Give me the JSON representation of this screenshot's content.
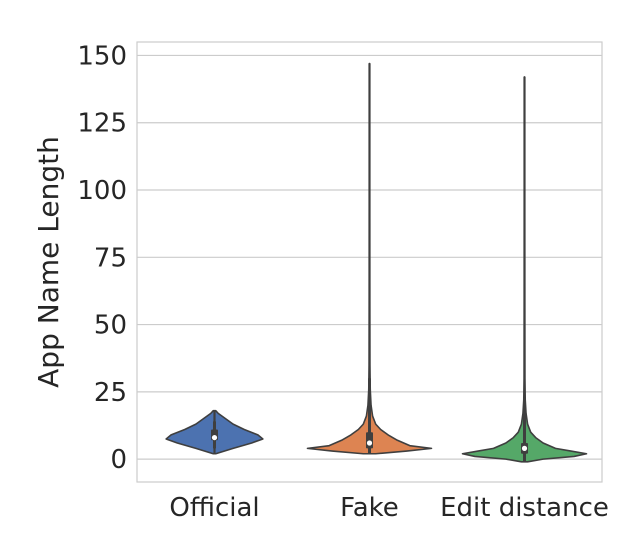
{
  "chart_data": {
    "type": "violin",
    "title": "",
    "xlabel": "",
    "ylabel": "App Name Length",
    "ylim": [
      -8.5,
      155
    ],
    "yticks": [
      0,
      25,
      50,
      75,
      100,
      125,
      150
    ],
    "grid": "horizontal",
    "categories": [
      "Official",
      "Fake",
      "Edit distance"
    ],
    "series": [
      {
        "category": "Official",
        "color": "#4c72b0",
        "min": 2,
        "max": 18,
        "q1": 7,
        "median": 8,
        "q3": 11,
        "whisker": [
          4,
          14
        ],
        "density_y": [
          2,
          4,
          6,
          7.5,
          9,
          11,
          13,
          15,
          17,
          18
        ],
        "density_width": [
          0.02,
          0.3,
          0.6,
          0.78,
          0.7,
          0.48,
          0.3,
          0.18,
          0.06,
          0.02
        ]
      },
      {
        "category": "Fake",
        "color": "#dd8452",
        "min": 2,
        "max": 147,
        "q1": 4,
        "median": 6,
        "q3": 10,
        "whisker": [
          2,
          22
        ],
        "density_y": [
          2,
          3,
          4,
          5,
          7,
          9,
          11,
          13,
          16,
          20,
          26,
          35,
          60,
          100,
          147
        ],
        "density_width": [
          0.1,
          0.6,
          1.0,
          0.65,
          0.45,
          0.3,
          0.18,
          0.1,
          0.05,
          0.025,
          0.012,
          0.006,
          0.004,
          0.003,
          0.003
        ],
        "extra_whisker_max": 30
      },
      {
        "category": "Edit distance",
        "color": "#55a868",
        "min": -1,
        "max": 142,
        "q1": 2,
        "median": 4,
        "q3": 6,
        "whisker": [
          -1,
          19
        ],
        "density_y": [
          -1,
          0,
          1,
          2,
          3,
          4,
          6,
          8,
          10,
          13,
          17,
          22,
          30,
          60,
          100,
          142
        ],
        "density_width": [
          0.05,
          0.3,
          0.8,
          1.0,
          0.75,
          0.5,
          0.3,
          0.18,
          0.1,
          0.05,
          0.025,
          0.012,
          0.006,
          0.004,
          0.003,
          0.003
        ],
        "extra_whisker_max": 23
      }
    ]
  }
}
